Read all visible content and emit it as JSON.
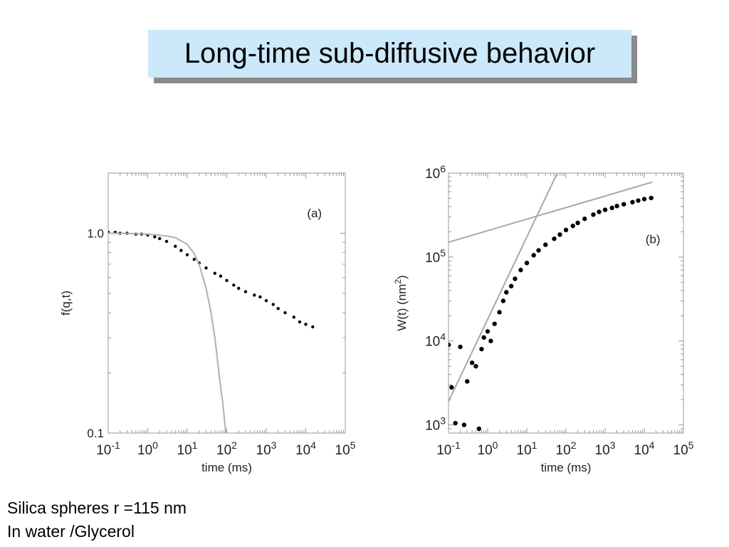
{
  "slide": {
    "title": "Long-time sub-diffusive behavior",
    "caption_line1": "Silica spheres r =115 nm",
    "caption_line2": "In water /Glycerol"
  },
  "chart_data": [
    {
      "type": "scatter",
      "panel_label": "(a)",
      "xlabel": "time (ms)",
      "ylabel": "f(q,t)",
      "xscale": "log",
      "yscale": "log",
      "xlim": [
        0.1,
        100000
      ],
      "ylim": [
        0.1,
        2.0
      ],
      "x_ticks": [
        "-1",
        "0",
        "1",
        "2",
        "3",
        "4",
        "5"
      ],
      "y_tick_labels": [
        "1.0",
        "0.1"
      ],
      "y_tick_values": [
        1.0,
        0.1
      ],
      "colors": {
        "data": "#000000",
        "fit": "#b0b0b0",
        "frame": "#999999"
      },
      "series": [
        {
          "kind": "points",
          "x": [
            0.1,
            0.15,
            0.2,
            0.3,
            0.5,
            0.7,
            1,
            1.5,
            2,
            3,
            5,
            7,
            10,
            15,
            20,
            30,
            50,
            70,
            100,
            150,
            200,
            300,
            500,
            700,
            1000,
            1500,
            2000,
            3000,
            5000,
            7000,
            10000,
            15000
          ],
          "y": [
            1.01,
            1.01,
            1.0,
            1.0,
            0.99,
            0.99,
            0.98,
            0.96,
            0.94,
            0.91,
            0.86,
            0.82,
            0.78,
            0.74,
            0.71,
            0.67,
            0.63,
            0.61,
            0.58,
            0.55,
            0.53,
            0.51,
            0.49,
            0.48,
            0.46,
            0.44,
            0.42,
            0.4,
            0.38,
            0.36,
            0.35,
            0.34
          ]
        },
        {
          "kind": "line",
          "x": [
            0.1,
            0.3,
            1,
            3,
            5,
            10,
            15,
            20,
            30,
            40,
            50,
            60,
            70,
            80,
            90,
            100
          ],
          "y": [
            1.0,
            0.997,
            0.99,
            0.97,
            0.95,
            0.88,
            0.79,
            0.7,
            0.53,
            0.4,
            0.3,
            0.22,
            0.17,
            0.14,
            0.11,
            0.09
          ]
        }
      ]
    },
    {
      "type": "scatter",
      "panel_label": "(b)",
      "xlabel": "time (ms)",
      "ylabel": "W(t) (nm",
      "ylabel_sup": "2",
      "ylabel_close": ")",
      "xscale": "log",
      "yscale": "log",
      "xlim": [
        0.1,
        100000
      ],
      "ylim": [
        800,
        1000000
      ],
      "x_ticks": [
        "-1",
        "0",
        "1",
        "2",
        "3",
        "4",
        "5"
      ],
      "y_ticks": [
        "3",
        "4",
        "5",
        "6"
      ],
      "colors": {
        "data": "#000000",
        "fit": "#a8a8a8",
        "frame": "#999999"
      },
      "series": [
        {
          "kind": "points",
          "x": [
            0.1,
            0.12,
            0.15,
            0.2,
            0.25,
            0.3,
            0.4,
            0.5,
            0.6,
            0.7,
            0.8,
            1,
            1.2,
            1.5,
            2,
            2.5,
            3,
            4,
            5,
            7,
            10,
            15,
            20,
            30,
            50,
            70,
            100,
            150,
            200,
            300,
            500,
            700,
            1000,
            1500,
            2000,
            3000,
            5000,
            7000,
            10000,
            15000
          ],
          "y": [
            9000,
            2800,
            1050,
            8500,
            1000,
            3300,
            5500,
            5000,
            900,
            8000,
            11000,
            13000,
            10000,
            16000,
            22000,
            30000,
            38000,
            45000,
            55000,
            70000,
            85000,
            105000,
            120000,
            140000,
            165000,
            185000,
            210000,
            235000,
            255000,
            285000,
            320000,
            345000,
            365000,
            385000,
            405000,
            425000,
            450000,
            470000,
            490000,
            505000
          ]
        },
        {
          "kind": "line",
          "x": [
            0.1,
            60
          ],
          "y": [
            1900,
            1000000
          ]
        },
        {
          "kind": "line",
          "x": [
            0.1,
            16000
          ],
          "y": [
            150000,
            780000
          ]
        }
      ]
    }
  ]
}
